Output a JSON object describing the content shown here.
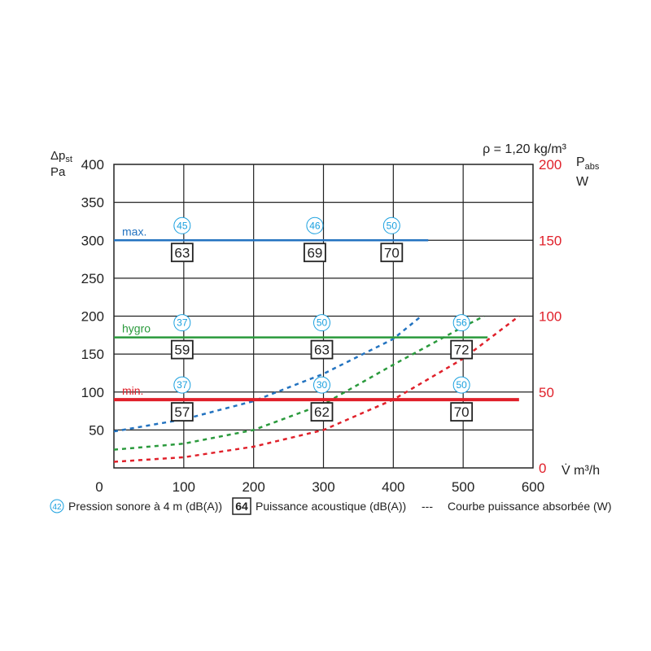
{
  "chart_data": {
    "type": "line",
    "density_note": "ρ = 1,20 kg/m³",
    "left_axis": {
      "label_main": "Δp",
      "label_sub": "st",
      "unit": "Pa",
      "ylim": [
        0,
        400
      ],
      "ticks": [
        50,
        100,
        150,
        200,
        250,
        300,
        350,
        400
      ]
    },
    "right_axis": {
      "label_main": "P",
      "label_sub": "abs",
      "unit": "W",
      "ylim": [
        0,
        200
      ],
      "ticks": [
        0,
        50,
        100,
        150,
        200
      ],
      "color": "#e0202a"
    },
    "x_axis": {
      "label": "V̇ m³/h",
      "xlim": [
        0,
        600
      ],
      "ticks": [
        0,
        100,
        200,
        300,
        400,
        500,
        600
      ]
    },
    "series": [
      {
        "name": "max.",
        "color": "#2373c0",
        "pressure": 300,
        "x_end": 450,
        "power_curve": [
          [
            0,
            24
          ],
          [
            100,
            32
          ],
          [
            200,
            44
          ],
          [
            300,
            62
          ],
          [
            400,
            85
          ],
          [
            440,
            100
          ]
        ],
        "markers": [
          {
            "x": 100,
            "pression_sonore": "45",
            "puissance": "63"
          },
          {
            "x": 290,
            "pression_sonore": "46",
            "puissance": "69"
          },
          {
            "x": 400,
            "pression_sonore": "50",
            "puissance": "70"
          }
        ]
      },
      {
        "name": "hygro",
        "color": "#2a9a3c",
        "pressure": 172,
        "x_end": 535,
        "power_curve": [
          [
            0,
            12
          ],
          [
            100,
            16
          ],
          [
            200,
            25
          ],
          [
            300,
            42
          ],
          [
            400,
            68
          ],
          [
            500,
            93
          ],
          [
            530,
            100
          ]
        ],
        "markers": [
          {
            "x": 100,
            "pression_sonore": "37",
            "puissance": "59"
          },
          {
            "x": 300,
            "pression_sonore": "50",
            "puissance": "63"
          },
          {
            "x": 500,
            "pression_sonore": "56",
            "puissance": "72"
          }
        ]
      },
      {
        "name": "min.",
        "color": "#e0202a",
        "pressure": 90,
        "x_end": 580,
        "power_curve": [
          [
            0,
            4
          ],
          [
            100,
            7
          ],
          [
            200,
            14
          ],
          [
            300,
            25
          ],
          [
            400,
            45
          ],
          [
            500,
            72
          ],
          [
            580,
            100
          ]
        ],
        "markers": [
          {
            "x": 100,
            "pression_sonore": "37",
            "puissance": "57"
          },
          {
            "x": 300,
            "pression_sonore": "30",
            "puissance": "62"
          },
          {
            "x": 500,
            "pression_sonore": "50",
            "puissance": "70"
          }
        ]
      }
    ],
    "legend": [
      {
        "symbol": "42",
        "text": "Pression sonore à 4 m (dB(A))"
      },
      {
        "symbol": "64",
        "text": "Puissance acoustique (dB(A))"
      },
      {
        "symbol": "---",
        "text": "Courbe puissance absorbée (W)"
      }
    ],
    "grid": true
  }
}
